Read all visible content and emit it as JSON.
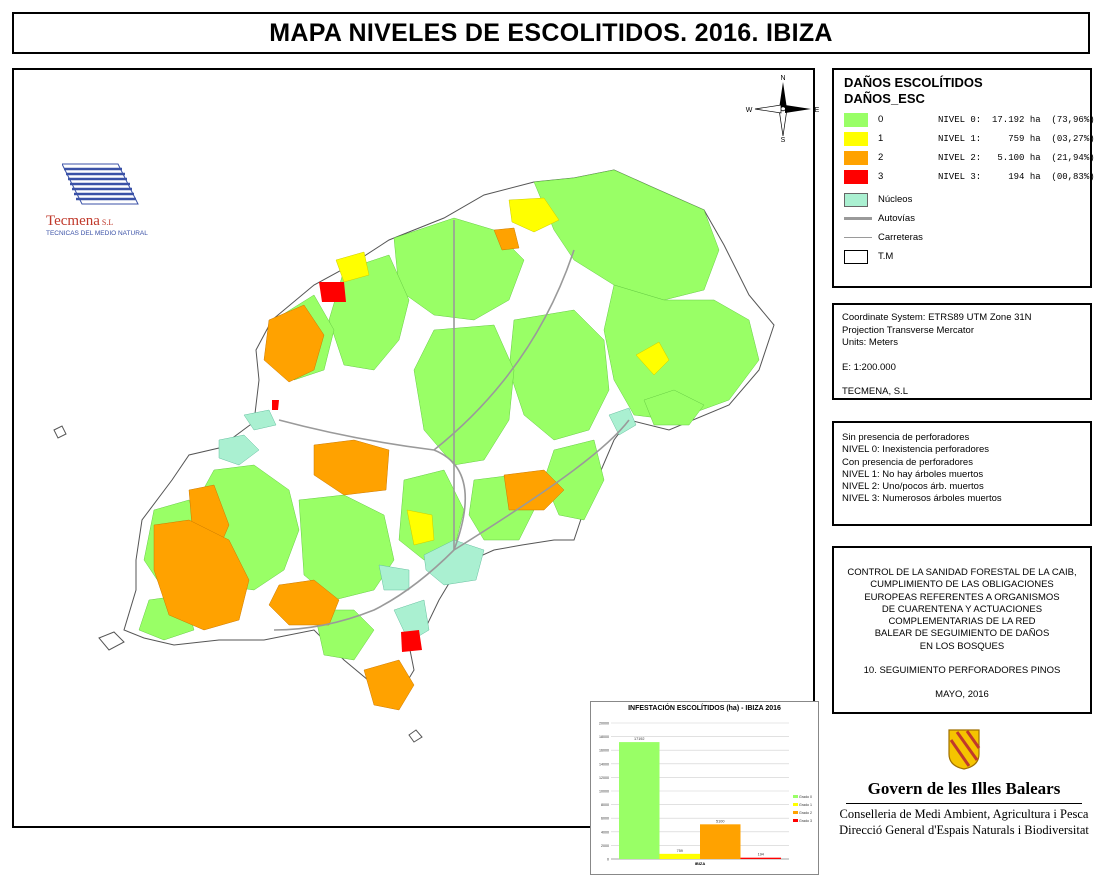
{
  "title": "MAPA NIVELES DE ESCOLITIDOS. 2016. IBIZA",
  "colors": {
    "level0": "#99ff66",
    "level1": "#ffff00",
    "level2": "#ffa200",
    "level3": "#ff0000",
    "nucleos": "#aaf0d1",
    "roads": "#aaaaaa",
    "logo_blue": "#3b52a7",
    "logo_red": "#c0392b"
  },
  "logo": {
    "company": "Tecmena",
    "suffix": "S.L",
    "subtitle": "TECNICAS DEL MEDIO NATURAL"
  },
  "compass": {
    "n": "N",
    "s": "S",
    "e": "E",
    "w": "W"
  },
  "legend": {
    "heading1": "DAÑOS ESCOLÍTIDOS",
    "heading2": "DAÑOS_ESC",
    "levels": [
      {
        "label": "0",
        "stat": "NIVEL 0:  17.192 ha  (73,96%)"
      },
      {
        "label": "1",
        "stat": "NIVEL 1:     759 ha  (03,27%)"
      },
      {
        "label": "2",
        "stat": "NIVEL 2:   5.100 ha  (21,94%)"
      },
      {
        "label": "3",
        "stat": "NIVEL 3:     194 ha  (00,83%)"
      }
    ],
    "nucleos": "Núcleos",
    "autovias": "Autovías",
    "carreteras": "Carreteras",
    "tm": "T.M"
  },
  "coord": {
    "line1": "Coordinate System: ETRS89 UTM Zone 31N",
    "line2": "Projection Transverse Mercator",
    "line3": "Units: Meters",
    "scale": "E: 1:200.000",
    "author": "TECMENA, S.L"
  },
  "level_desc": [
    "Sin presencia de perforadores",
    "NIVEL 0: Inexistencia perforadores",
    "Con presencia de perforadores",
    "NIVEL 1: No hay árboles muertos",
    "NIVEL 2: Uno/pocos árb. muertos",
    "NIVEL 3: Numerosos árboles muertos"
  ],
  "project": [
    "CONTROL DE LA SANIDAD FORESTAL DE LA CAIB,",
    "CUMPLIMIENTO DE LAS OBLIGACIONES",
    "EUROPEAS REFERENTES A ORGANISMOS",
    "DE CUARENTENA Y ACTUACIONES",
    "COMPLEMENTARIAS DE LA RED",
    "BALEAR DE SEGUIMIENTO DE DAÑOS",
    "EN LOS BOSQUES",
    "",
    "10. SEGUIMIENTO PERFORADORES PINOS",
    "",
    "MAYO, 2016"
  ],
  "gov": {
    "name": "Govern de les Illes Balears",
    "dept1": "Conselleria de Medi Ambient, Agricultura i Pesca",
    "dept2": "Direcció General d'Espais Naturals i Biodiversitat"
  },
  "chart_data": {
    "type": "bar",
    "title": "INFESTACIÓN ESCOLÍTIDOS (ha) - IBIZA 2016",
    "categories": [
      "IBIZA"
    ],
    "series": [
      {
        "name": "Grado 0",
        "values": [
          17192
        ],
        "label": "17192",
        "color": "#99ff66"
      },
      {
        "name": "Grado 1",
        "values": [
          759
        ],
        "label": "759",
        "color": "#ffff00"
      },
      {
        "name": "Grado 2",
        "values": [
          5100
        ],
        "label": "5100",
        "color": "#ffa200"
      },
      {
        "name": "Grado 3",
        "values": [
          194
        ],
        "label": "194",
        "color": "#ff0000"
      }
    ],
    "ylim": [
      0,
      20000
    ],
    "yticks": [
      0,
      2000,
      4000,
      6000,
      8000,
      10000,
      12000,
      14000,
      16000,
      18000,
      20000
    ],
    "legend_position": "right",
    "grid": true
  }
}
